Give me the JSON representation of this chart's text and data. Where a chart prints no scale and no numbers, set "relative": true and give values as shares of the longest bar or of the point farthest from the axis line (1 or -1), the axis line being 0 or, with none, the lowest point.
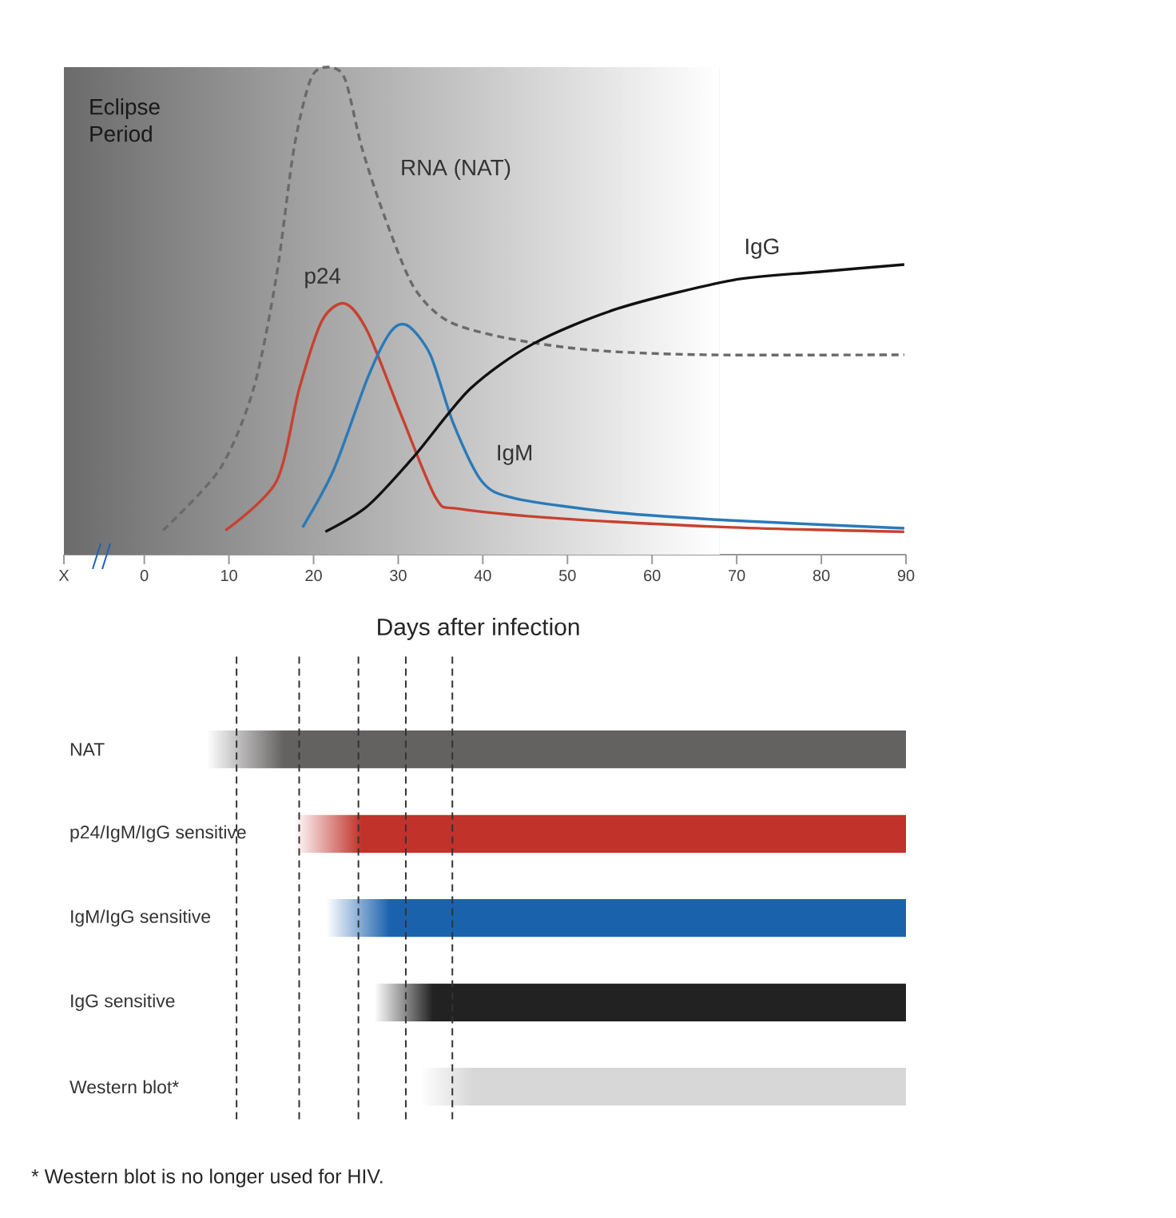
{
  "chart_data": [
    {
      "type": "line",
      "relative": true,
      "xlabel": "Days after infection",
      "xlim": [
        -9.5,
        90
      ],
      "xticks": [
        {
          "value": -9.5,
          "label": "X"
        },
        0,
        10,
        20,
        30,
        40,
        50,
        60,
        70,
        80,
        90
      ],
      "tick_labels": "x",
      "bands": [
        {
          "axis": "x",
          "from": -9.5,
          "to": 68,
          "label": "Eclipse Period",
          "color": "#6b6b6b"
        }
      ],
      "series": [
        {
          "name": "RNA (NAT)",
          "color": "#6a6a6a",
          "line_style": "dashed",
          "x": [
            2.2,
            8.9,
            12.9,
            15.6,
            17.7,
            19.7,
            21.7,
            23.7,
            25.7,
            28.4,
            31.8,
            35.8,
            42.6,
            52.6,
            66.2,
            89.8
          ],
          "values": [
            0.05,
            0.175,
            0.34,
            0.57,
            0.835,
            0.977,
            1.0,
            0.976,
            0.835,
            0.693,
            0.55,
            0.48,
            0.445,
            0.42,
            0.41,
            0.41
          ]
        },
        {
          "name": "p24",
          "color": "#c8412f",
          "x": [
            9.6,
            15.6,
            18.3,
            21.0,
            23.7,
            26.4,
            30.5,
            34.5,
            37.2,
            49.3,
            69.5,
            89.8
          ],
          "values": [
            0.05,
            0.15,
            0.34,
            0.48,
            0.515,
            0.457,
            0.28,
            0.115,
            0.094,
            0.074,
            0.056,
            0.047
          ]
        },
        {
          "name": "IgM",
          "color": "#2a7ab8",
          "x": [
            18.7,
            22.4,
            26.4,
            29.1,
            31.1,
            33.8,
            36.5,
            39.9,
            43.9,
            56.0,
            69.5,
            89.8
          ],
          "values": [
            0.056,
            0.175,
            0.363,
            0.457,
            0.47,
            0.41,
            0.27,
            0.15,
            0.115,
            0.086,
            0.07,
            0.054
          ]
        },
        {
          "name": "IgG",
          "color": "#111111",
          "x": [
            21.4,
            26.4,
            31.8,
            38.5,
            46.0,
            56.0,
            69.5,
            79.6,
            89.8
          ],
          "values": [
            0.047,
            0.1,
            0.2,
            0.34,
            0.433,
            0.505,
            0.563,
            0.58,
            0.595
          ]
        }
      ]
    },
    {
      "type": "bar",
      "orientation": "horizontal",
      "xlim": [
        -9.5,
        90
      ],
      "tick_labels": "y",
      "categories": [
        "NAT",
        "p24/IgM/IgG sensitive",
        "IgM/IgG sensitive",
        "IgG sensitive",
        "Western blot*"
      ],
      "base": [
        7.4,
        17.7,
        21.5,
        27.2,
        32.6
      ],
      "values": [
        82.6,
        72.3,
        68.5,
        62.8,
        57.4
      ],
      "colors": [
        "#646161",
        "#c0322a",
        "#1b62ad",
        "#222222",
        "#d8d7d8"
      ],
      "ref_lines": [
        {
          "axis": "x",
          "value": 10.9,
          "color": "#333333",
          "line_style": "dashed"
        },
        {
          "axis": "x",
          "value": 18.3,
          "color": "#333333",
          "line_style": "dashed"
        },
        {
          "axis": "x",
          "value": 25.3,
          "color": "#333333",
          "line_style": "dashed"
        },
        {
          "axis": "x",
          "value": 30.9,
          "color": "#333333",
          "line_style": "dashed"
        },
        {
          "axis": "x",
          "value": 36.4,
          "color": "#333333",
          "line_style": "dashed"
        }
      ],
      "annotations": [
        "* Western blot is no longer used for HIV."
      ]
    }
  ]
}
